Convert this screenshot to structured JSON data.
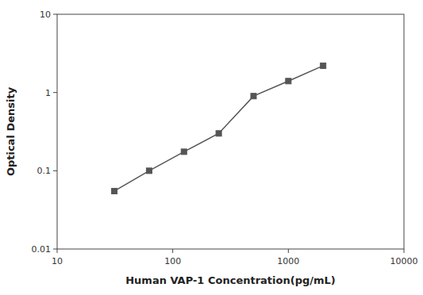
{
  "chart_data": {
    "type": "line",
    "x": [
      31.25,
      62.5,
      125,
      250,
      500,
      1000,
      2000
    ],
    "values": [
      0.055,
      0.1,
      0.175,
      0.3,
      0.9,
      1.4,
      2.2
    ],
    "xlabel": "Human VAP-1 Concentration(pg/mL)",
    "ylabel": "Optical Density",
    "xlim": [
      10,
      10000
    ],
    "ylim": [
      0.01,
      10
    ],
    "xticks": [
      10,
      100,
      1000,
      10000
    ],
    "yticks": [
      0.01,
      0.1,
      1,
      10
    ],
    "log": true,
    "grid": false,
    "color": "#555555",
    "marker": "square"
  }
}
